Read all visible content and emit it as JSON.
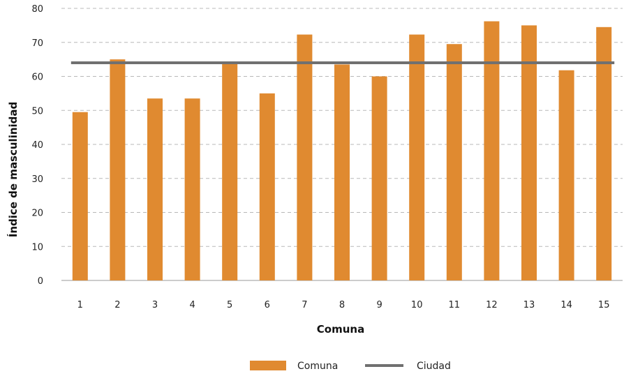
{
  "chart_data": {
    "type": "bar",
    "xlabel": "Comuna",
    "ylabel": "Índice de masculinidad",
    "categories": [
      "1",
      "2",
      "3",
      "4",
      "5",
      "6",
      "7",
      "8",
      "9",
      "10",
      "11",
      "12",
      "13",
      "14",
      "15"
    ],
    "series": [
      {
        "name": "Comuna",
        "type": "bar",
        "color": "#E08A30",
        "values": [
          49.5,
          65,
          53.5,
          53.5,
          64,
          55,
          72.3,
          63.5,
          60,
          72.3,
          69.5,
          76.2,
          75,
          61.8,
          74.5
        ]
      },
      {
        "name": "Ciudad",
        "type": "line",
        "color": "#707070",
        "value": 64
      }
    ],
    "ylim": [
      0,
      80
    ],
    "yticks": [
      0,
      10,
      20,
      30,
      40,
      50,
      60,
      70,
      80
    ],
    "grid": true,
    "legend_position": "bottom"
  }
}
